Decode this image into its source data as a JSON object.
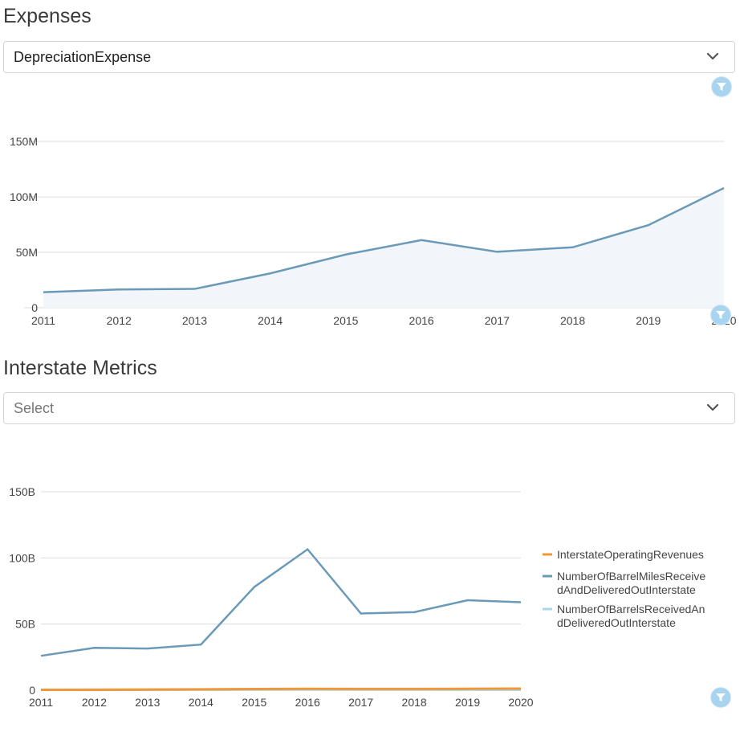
{
  "expenses": {
    "title": "Expenses",
    "select": {
      "value": "DepreciationExpense",
      "icon": "chevron-down-icon"
    },
    "filter_icon": "filter-icon"
  },
  "interstate": {
    "title": "Interstate Metrics",
    "select": {
      "placeholder": "Select",
      "icon": "chevron-down-icon"
    },
    "filter_icon": "filter-icon"
  },
  "colors": {
    "line_blue": "#6a9ab8",
    "line_orange": "#f0973a",
    "line_light": "#a8d8e8",
    "area_fill": "#f2f6fa",
    "grid": "#dcdcdc",
    "filter": "#a8d4f0"
  },
  "chart_data": [
    {
      "type": "area",
      "x": [
        2011,
        2012,
        2013,
        2014,
        2015,
        2016,
        2017,
        2018,
        2019,
        2020
      ],
      "series": [
        {
          "values": [
            14000000,
            16500000,
            17000000,
            31000000,
            48000000,
            61000000,
            50500000,
            54500000,
            74500000,
            108000000
          ]
        }
      ],
      "yticks": [
        "0",
        "50M",
        "100M",
        "150M"
      ],
      "ylim": [
        0,
        150000000
      ],
      "grid": true
    },
    {
      "type": "line",
      "x": [
        2011,
        2012,
        2013,
        2014,
        2015,
        2016,
        2017,
        2018,
        2019,
        2020
      ],
      "series": [
        {
          "name": "InterstateOperatingRevenues",
          "values": [
            300000000,
            400000000,
            500000000,
            700000000,
            900000000,
            1100000000,
            1000000000,
            1000000000,
            1100000000,
            1200000000
          ]
        },
        {
          "name": "NumberOfBarrelMilesReceivedAndDeliveredOutInterstate",
          "values": [
            26000000000,
            32000000000,
            31500000000,
            34500000000,
            78000000000,
            106500000000,
            58000000000,
            59000000000,
            68000000000,
            66500000000
          ]
        },
        {
          "name": "NumberOfBarrelsReceivedAndDeliveredOutInterstate",
          "values": [
            100000000,
            100000000,
            100000000,
            200000000,
            200000000,
            300000000,
            200000000,
            200000000,
            200000000,
            200000000
          ]
        }
      ],
      "legend_lines": [
        [
          "InterstateOperatingRevenues"
        ],
        [
          "NumberOfBarrelMilesReceive",
          "dAndDeliveredOutInterstate"
        ],
        [
          "NumberOfBarrelsReceivedAn",
          "dDeliveredOutInterstate"
        ]
      ],
      "yticks": [
        "0",
        "50B",
        "100B",
        "150B"
      ],
      "ylim": [
        0,
        150000000000
      ],
      "legend": "right",
      "grid": true
    }
  ]
}
